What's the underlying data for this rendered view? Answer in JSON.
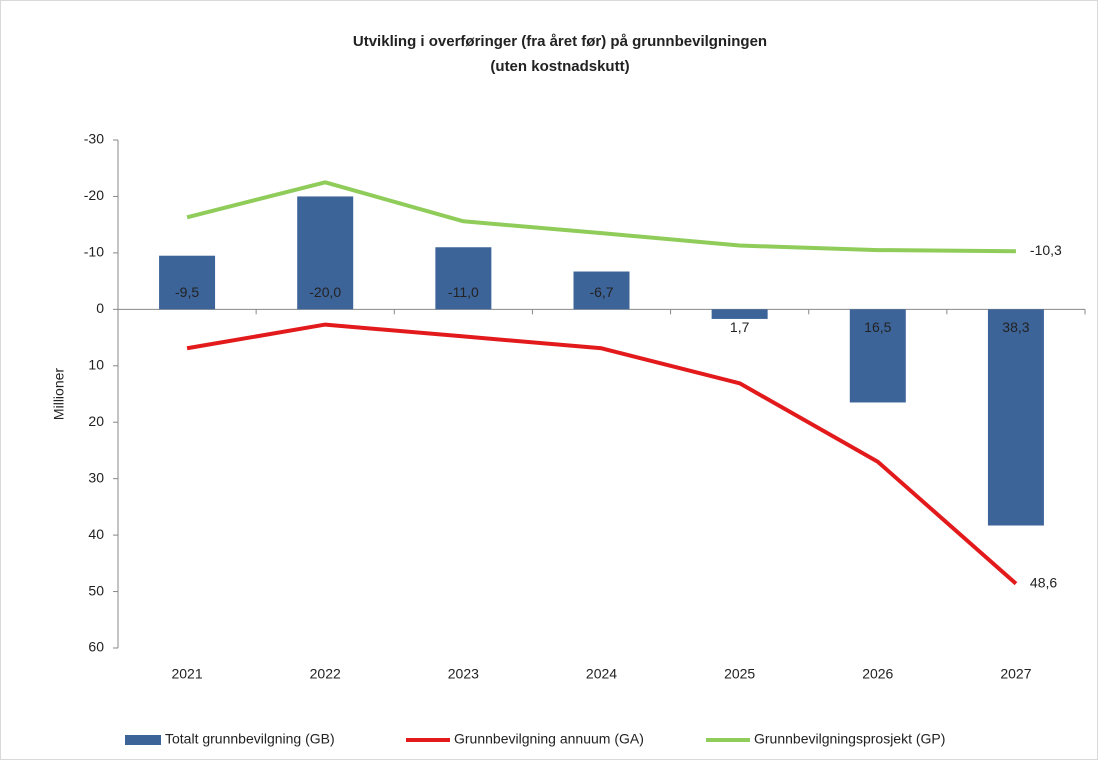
{
  "chart_data": {
    "type": "bar_line",
    "title": [
      "Utvikling i overføringer (fra året før) på grunnbevilgningen",
      "(uten kostnadskutt)"
    ],
    "y_label": "Millioner",
    "categories": [
      "2021",
      "2022",
      "2023",
      "2024",
      "2025",
      "2026",
      "2027"
    ],
    "ylim": [
      -30,
      60
    ],
    "y_inverted": true,
    "yticks": [
      -30,
      -20,
      -10,
      0,
      10,
      20,
      30,
      40,
      50,
      60
    ],
    "grid": false,
    "legend": "bottom",
    "series": [
      {
        "name": "Totalt grunnbevilgning (GB)",
        "type": "bar",
        "color": "#3d6499",
        "values": [
          -9.5,
          -20.0,
          -11.0,
          -6.7,
          1.7,
          16.5,
          38.3
        ],
        "value_labels": [
          "-9,5",
          "-20,0",
          "-11,0",
          "-6,7",
          "1,7",
          "16,5",
          "38,3"
        ]
      },
      {
        "name": "Grunnbevilgning annuum (GA)",
        "type": "line",
        "color": "#e31a1c",
        "values": [
          6.9,
          2.7,
          4.8,
          6.9,
          13.1,
          27.0,
          48.6
        ],
        "value_labels": [
          null,
          null,
          null,
          null,
          null,
          null,
          "48,6"
        ]
      },
      {
        "name": "Grunnbevilgningsprosjekt (GP)",
        "type": "line",
        "color": "#8fcc5a",
        "values": [
          -16.3,
          -22.5,
          -15.6,
          -13.5,
          -11.3,
          -10.5,
          -10.3
        ],
        "value_labels": [
          null,
          null,
          null,
          null,
          null,
          null,
          "-10,3"
        ]
      }
    ]
  }
}
